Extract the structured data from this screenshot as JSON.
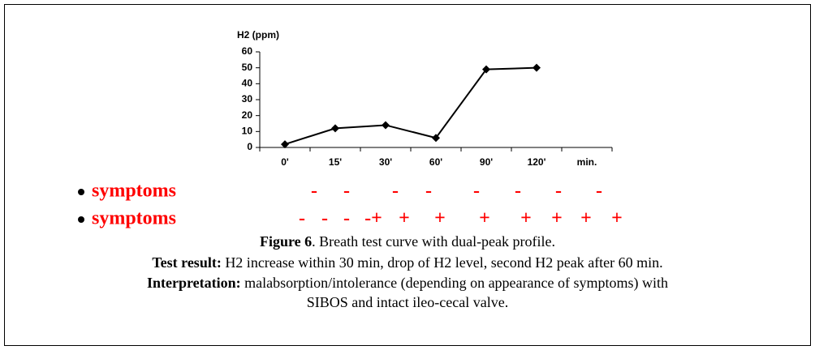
{
  "chart_data": {
    "type": "line",
    "y_label": "H2 (ppm)",
    "x_label": "min.",
    "categories": [
      "0'",
      "15'",
      "30'",
      "60'",
      "90'",
      "120'"
    ],
    "series": [
      {
        "color": "#000000",
        "values": [
          2,
          12,
          14,
          6,
          49,
          50
        ]
      }
    ],
    "ylim": [
      0,
      60
    ],
    "yticks": [
      0,
      10,
      20,
      30,
      40,
      50,
      60
    ]
  },
  "symptom_rows": [
    {
      "label": "symptoms",
      "signs": [
        "-",
        "-",
        "-",
        "-",
        "-",
        "-",
        "-",
        "-"
      ]
    },
    {
      "label": "symptoms",
      "signs": [
        "-",
        "-",
        "-",
        "-+",
        "+",
        "+",
        "+",
        "+",
        "+",
        "+",
        "+"
      ]
    }
  ],
  "caption": {
    "figure": {
      "label": "Figure 6",
      "text": ". Breath test curve with dual-peak profile."
    },
    "result": {
      "label": "Test result:",
      "text": " H2 increase within 30 min, drop of H2 level, second H2 peak after 60 min."
    },
    "interpretation": {
      "label": "Interpretation:",
      "text": " malabsorption/intolerance (depending on appearance of symptoms) with",
      "text2": "SIBOS and intact ileo-cecal valve."
    }
  }
}
